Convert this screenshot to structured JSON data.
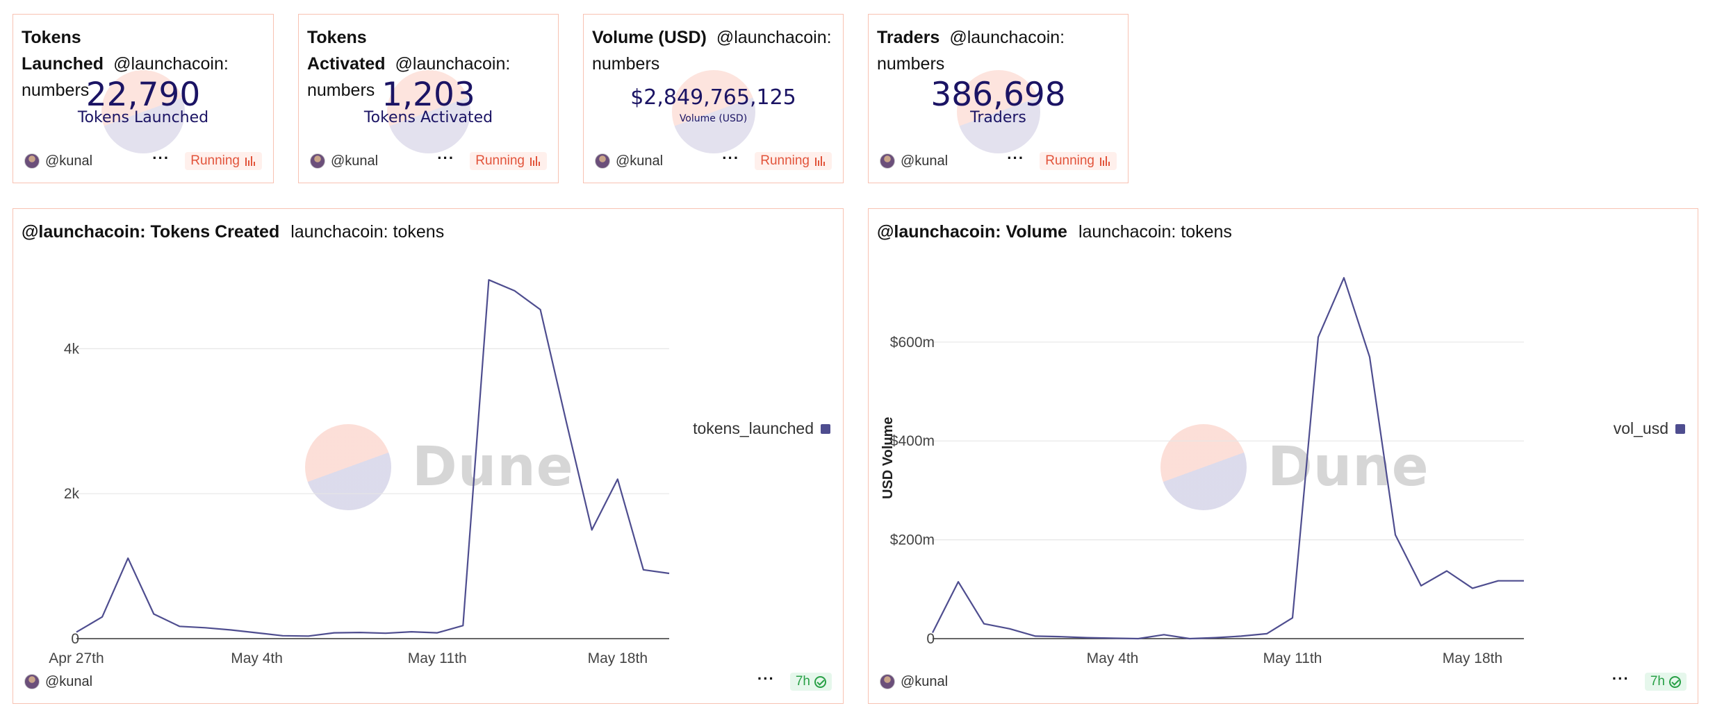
{
  "counters": [
    {
      "title": "Tokens Launched",
      "title_line1": "Tokens",
      "title_line2": "Launched",
      "query": "@launchacoin:",
      "query2": "numbers",
      "value": "22,790",
      "label": "Tokens Launched",
      "author": "@kunal",
      "status": "Running"
    },
    {
      "title": "Tokens Activated",
      "title_line1": "Tokens",
      "title_line2": "Activated",
      "query": "@launchacoin:",
      "query2": "numbers",
      "value": "1,203",
      "label": "Tokens Activated",
      "author": "@kunal",
      "status": "Running"
    },
    {
      "title": "Volume (USD)",
      "query": "@launchacoin:",
      "query2": "numbers",
      "value": "$2,849,765,125",
      "label": "Volume (USD)",
      "author": "@kunal",
      "status": "Running"
    },
    {
      "title": "Traders",
      "query": "@launchacoin:",
      "query2": "numbers",
      "value": "386,698",
      "label": "Traders",
      "author": "@kunal",
      "status": "Running"
    }
  ],
  "charts": [
    {
      "title": "@launchacoin: Tokens Created",
      "query": "launchacoin: tokens",
      "author": "@kunal",
      "freshness": "7h",
      "watermark": "Dune",
      "legend": "tokens_launched",
      "line_color": "#4e4d8f"
    },
    {
      "title": "@launchacoin: Volume",
      "query": "launchacoin: tokens",
      "author": "@kunal",
      "freshness": "7h",
      "watermark": "Dune",
      "legend": "vol_usd",
      "line_color": "#4e4d8f"
    }
  ],
  "chart_data": [
    {
      "type": "line",
      "title": "@launchacoin: Tokens Created",
      "xlabel": "",
      "ylabel": "",
      "x": [
        "2025-04-27",
        "2025-04-28",
        "2025-04-29",
        "2025-04-30",
        "2025-05-01",
        "2025-05-02",
        "2025-05-03",
        "2025-05-04",
        "2025-05-05",
        "2025-05-06",
        "2025-05-07",
        "2025-05-08",
        "2025-05-09",
        "2025-05-10",
        "2025-05-11",
        "2025-05-12",
        "2025-05-13",
        "2025-05-14",
        "2025-05-15",
        "2025-05-16",
        "2025-05-17",
        "2025-05-18",
        "2025-05-19",
        "2025-05-20"
      ],
      "series": [
        {
          "name": "tokens_launched",
          "values": [
            90,
            300,
            1110,
            340,
            170,
            150,
            120,
            80,
            40,
            35,
            80,
            85,
            75,
            95,
            80,
            180,
            4950,
            4800,
            4540,
            3000,
            1500,
            2200,
            950,
            900
          ]
        }
      ],
      "x_ticks": [
        "Apr 27th",
        "May 4th",
        "May 11th",
        "May 18th"
      ],
      "y_ticks": [
        "0",
        "2k",
        "4k"
      ],
      "ylim": [
        0,
        5000
      ],
      "grid": true,
      "legend_position": "right"
    },
    {
      "type": "line",
      "title": "@launchacoin: Volume",
      "xlabel": "",
      "ylabel": "USD Volume",
      "x": [
        "2025-04-27",
        "2025-04-28",
        "2025-04-29",
        "2025-04-30",
        "2025-05-01",
        "2025-05-02",
        "2025-05-03",
        "2025-05-04",
        "2025-05-05",
        "2025-05-06",
        "2025-05-07",
        "2025-05-08",
        "2025-05-09",
        "2025-05-10",
        "2025-05-11",
        "2025-05-12",
        "2025-05-13",
        "2025-05-14",
        "2025-05-15",
        "2025-05-16",
        "2025-05-17",
        "2025-05-18",
        "2025-05-19",
        "2025-05-20"
      ],
      "series": [
        {
          "name": "vol_usd",
          "values": [
            12000000,
            115000000,
            30000000,
            20000000,
            5000000,
            4000000,
            2000000,
            1000000,
            0,
            8000000,
            0,
            2000000,
            5000000,
            10000000,
            42000000,
            610000000,
            730000000,
            570000000,
            210000000,
            107000000,
            137000000,
            102000000,
            117000000,
            117000000
          ]
        }
      ],
      "x_ticks": [
        "May 4th",
        "May 11th",
        "May 18th"
      ],
      "y_ticks": [
        "0",
        "$200m",
        "$400m",
        "$600m"
      ],
      "ylim": [
        0,
        750000000
      ],
      "grid": true,
      "legend_position": "right"
    }
  ]
}
